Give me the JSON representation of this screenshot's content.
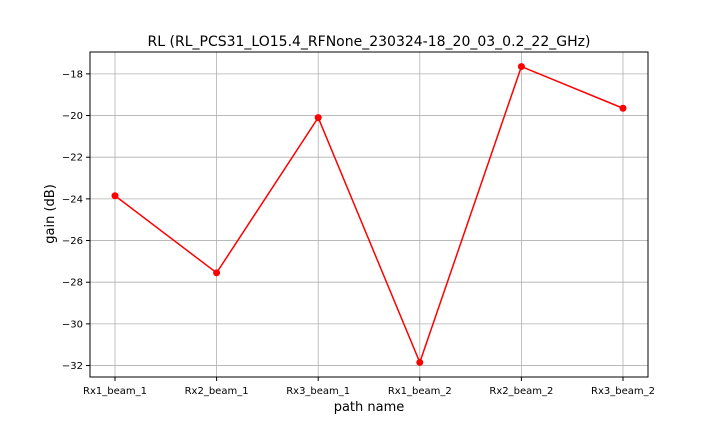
{
  "chart_data": {
    "type": "line",
    "title": "RL (RL_PCS31_LO15.4_RFNone_230324-18_20_03_0.2_22_GHz)",
    "xlabel": "path name",
    "ylabel": "gain (dB)",
    "categories": [
      "Rx1_beam_1",
      "Rx2_beam_1",
      "Rx3_beam_1",
      "Rx1_beam_2",
      "Rx2_beam_2",
      "Rx3_beam_2"
    ],
    "series": [
      {
        "values": [
          -23.85,
          -27.55,
          -20.1,
          -31.85,
          -17.65,
          -19.65
        ],
        "color": "#ff0000",
        "marker": "circle"
      }
    ],
    "ylim": [
      -32.55,
      -16.95
    ],
    "yticks": [
      -32,
      -30,
      -28,
      -26,
      -24,
      -22,
      -20,
      -18
    ],
    "grid": true,
    "legend": "none"
  }
}
